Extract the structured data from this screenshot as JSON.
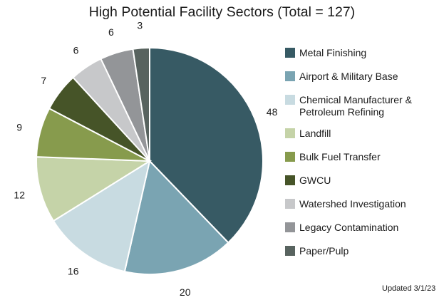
{
  "chart_data": {
    "type": "pie",
    "title": "High Potential Facility Sectors (Total = 127)",
    "total": 127,
    "categories": [
      "Metal Finishing",
      "Airport & Military Base",
      "Chemical Manufacturer & Petroleum Refining",
      "Landfill",
      "Bulk Fuel Transfer",
      "GWCU",
      "Watershed Investigation",
      "Legacy Contamination",
      "Paper/Pulp"
    ],
    "values": [
      48,
      20,
      16,
      12,
      9,
      7,
      6,
      6,
      3
    ],
    "colors": [
      "#375a64",
      "#7aa4b2",
      "#c8dbe1",
      "#c5d3a8",
      "#879b4d",
      "#465428",
      "#c7c8ca",
      "#939598",
      "#58635f"
    ],
    "legend_position": "right",
    "start_angle": "12 o'clock, clockwise",
    "annotation": "Updated 3/1/23"
  },
  "header": {
    "title": "High Potential Facility Sectors (Total = 127)"
  },
  "legend": {
    "items": [
      {
        "label": "Metal Finishing",
        "color": "#375a64"
      },
      {
        "label": "Airport & Military Base",
        "color": "#7aa4b2"
      },
      {
        "label": "Chemical Manufacturer & Petroleum Refining",
        "color": "#c8dbe1"
      },
      {
        "label": "Landfill",
        "color": "#c5d3a8"
      },
      {
        "label": "Bulk Fuel Transfer",
        "color": "#879b4d"
      },
      {
        "label": "GWCU",
        "color": "#465428"
      },
      {
        "label": "Watershed Investigation",
        "color": "#c7c8ca"
      },
      {
        "label": "Legacy Contamination",
        "color": "#939598"
      },
      {
        "label": "Paper/Pulp",
        "color": "#58635f"
      }
    ]
  },
  "footer": {
    "updated": "Updated 3/1/23"
  }
}
